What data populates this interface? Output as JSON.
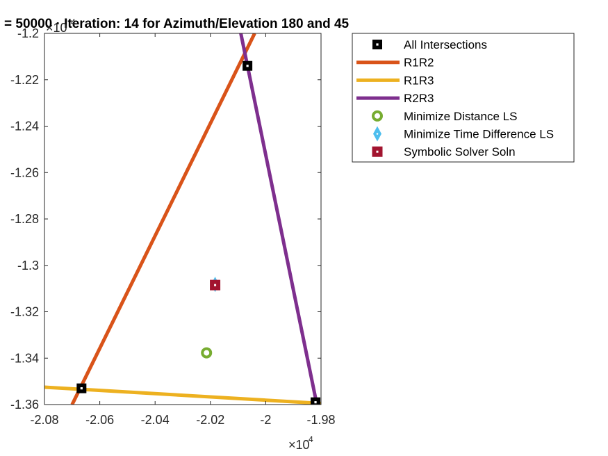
{
  "chart_data": {
    "type": "line",
    "title": "= 50000 · Iteration: 14 for Azimuth/Elevation 180 and 45",
    "x_multiplier": {
      "base": "×10",
      "exponent": "4"
    },
    "y_multiplier": {
      "base": "×10",
      "exponent": "4"
    },
    "xlim": [
      -2.08,
      -1.98
    ],
    "ylim": [
      -1.36,
      -1.2
    ],
    "x_ticks": [
      -2.08,
      -2.06,
      -2.04,
      -2.02,
      -2,
      -1.98
    ],
    "x_tick_labels": [
      "-2.08",
      "-2.06",
      "-2.04",
      "-2.02",
      "-2",
      "-1.98"
    ],
    "y_ticks": [
      -1.2,
      -1.22,
      -1.24,
      -1.26,
      -1.28,
      -1.3,
      -1.32,
      -1.34,
      -1.36
    ],
    "y_tick_labels": [
      "-1.2",
      "-1.22",
      "-1.24",
      "-1.26",
      "-1.28",
      "-1.3",
      "-1.32",
      "-1.34",
      "-1.36"
    ],
    "grid": false,
    "legend_position": "outside-top-right",
    "series": [
      {
        "name": "All Intersections",
        "kind": "markers",
        "marker": "square-hollow-center",
        "color": "#000000",
        "x": [
          -2.0666,
          -2.0066,
          -1.982
        ],
        "y": [
          -1.353,
          -1.214,
          -1.359
        ]
      },
      {
        "name": "R1R2",
        "kind": "line",
        "color": "#D95319",
        "x": [
          -2.07,
          -2.004
        ],
        "y": [
          -1.36,
          -1.2
        ]
      },
      {
        "name": "R1R3",
        "kind": "line",
        "color": "#EDB120",
        "x": [
          -2.08,
          -1.98
        ],
        "y": [
          -1.3525,
          -1.3595
        ]
      },
      {
        "name": "R2R3",
        "kind": "line",
        "color": "#7E2F8E",
        "x": [
          -2.009,
          -1.9815
        ],
        "y": [
          -1.2,
          -1.36
        ]
      },
      {
        "name": "Minimize Distance LS",
        "kind": "markers",
        "marker": "circle-hollow",
        "color": "#77AC30",
        "x": [
          -2.0214
        ],
        "y": [
          -1.3377
        ]
      },
      {
        "name": "Minimize Time Difference LS",
        "kind": "markers",
        "marker": "diamond-dot",
        "color": "#4DBEEE",
        "x": [
          -2.0183
        ],
        "y": [
          -1.3082
        ]
      },
      {
        "name": "Symbolic Solver Soln",
        "kind": "markers",
        "marker": "square-dot",
        "color": "#A2142F",
        "x": [
          -2.0183
        ],
        "y": [
          -1.3085
        ]
      }
    ]
  }
}
